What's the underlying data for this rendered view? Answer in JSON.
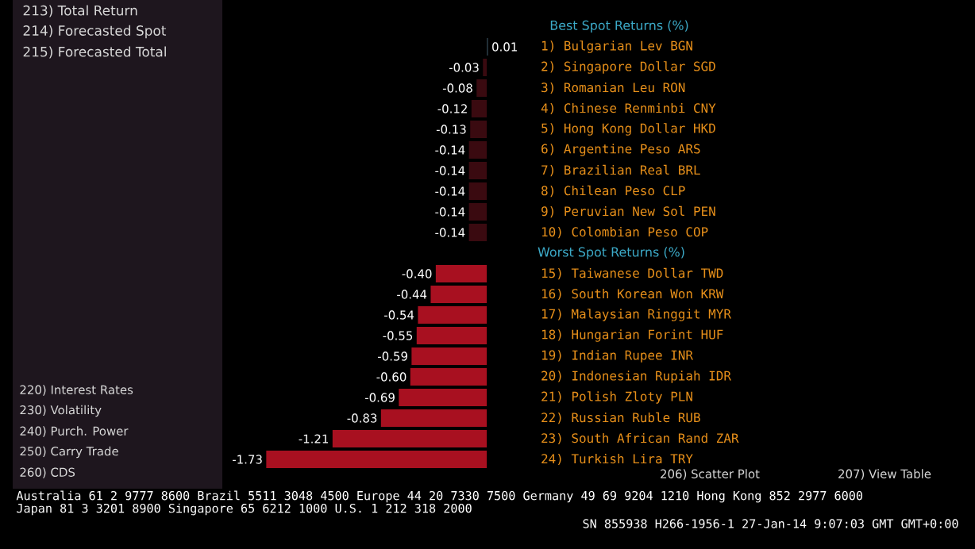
{
  "chart_data": {
    "type": "bar",
    "orientation": "horizontal",
    "title": "Best Spot Returns (%)",
    "categories": [
      "1) Bulgarian Lev BGN",
      "2) Singapore Dollar SGD",
      "3) Romanian Leu RON",
      "4) Chinese Renminbi CNY",
      "5) Hong Kong Dollar HKD",
      "6) Argentine Peso ARS",
      "7) Brazilian Real BRL",
      "8) Chilean Peso CLP",
      "9) Peruvian New Sol PEN",
      "10) Colombian Peso COP",
      null,
      "15) Taiwanese Dollar TWD",
      "16) South Korean Won KRW",
      "17) Malaysian Ringgit MYR",
      "18) Hungarian Forint HUF",
      "19) Indian Rupee INR",
      "20) Indonesian Rupiah IDR",
      "21) Polish Zloty PLN",
      "22) Russian Ruble RUB",
      "23) South African Rand ZAR",
      "24) Turkish Lira TRY"
    ],
    "values": [
      0.01,
      -0.03,
      -0.08,
      -0.12,
      -0.13,
      -0.14,
      -0.14,
      -0.14,
      -0.14,
      -0.14,
      null,
      -0.4,
      -0.44,
      -0.54,
      -0.55,
      -0.59,
      -0.6,
      -0.69,
      -0.83,
      -1.21,
      -1.73
    ],
    "value_labels": [
      "0.01",
      "-0.03",
      "-0.08",
      "-0.12",
      "-0.13",
      "-0.14",
      "-0.14",
      "-0.14",
      "-0.14",
      "-0.14",
      null,
      "-0.40",
      "-0.44",
      "-0.54",
      "-0.55",
      "-0.59",
      "-0.60",
      "-0.69",
      "-0.83",
      "-1.21",
      "-1.73"
    ],
    "colors": [
      "#2a3a44",
      "#3a0a10",
      "#3a0a10",
      "#3a0a10",
      "#3a0a10",
      "#3a0a10",
      "#3a0a10",
      "#3a0a10",
      "#3a0a10",
      "#3a0a10",
      null,
      "#a81020",
      "#a81020",
      "#a81020",
      "#a81020",
      "#a81020",
      "#a81020",
      "#a81020",
      "#a81020",
      "#a81020",
      "#a81020"
    ],
    "annotations": [
      "Worst Spot Returns (%)",
      "213) Total Return",
      "214) Forecasted Spot",
      "215) Forecasted Total",
      "220) Interest Rates",
      "230) Volatility",
      "240) Purch. Power",
      "250) Carry Trade",
      "260) CDS",
      "206) Scatter Plot",
      "207) View Table",
      "Australia 61 2 9777 8600 Brazil 5511 3048 4500 Europe 44 20 7330 7500 Germany 49 69 9204 1210 Hong Kong 852 2977 6000",
      "Japan 81 3 3201 8900     Singapore 65 6212 1000     U.S. 1 212 318 2000",
      "SN 855938 H266-1956-1 27-Jan-14  9:07:03 GMT  GMT+0:00"
    ]
  }
}
